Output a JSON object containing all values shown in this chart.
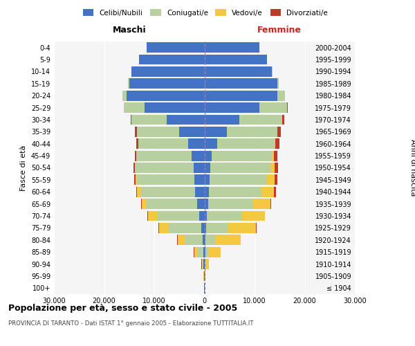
{
  "age_groups": [
    "100+",
    "95-99",
    "90-94",
    "85-89",
    "80-84",
    "75-79",
    "70-74",
    "65-69",
    "60-64",
    "55-59",
    "50-54",
    "45-49",
    "40-44",
    "35-39",
    "30-34",
    "25-29",
    "20-24",
    "15-19",
    "10-14",
    "5-9",
    "0-4"
  ],
  "birth_years": [
    "≤ 1904",
    "1905-1909",
    "1910-1914",
    "1915-1919",
    "1920-1924",
    "1925-1929",
    "1930-1934",
    "1935-1939",
    "1940-1944",
    "1945-1949",
    "1950-1954",
    "1955-1959",
    "1960-1964",
    "1965-1969",
    "1970-1974",
    "1975-1979",
    "1980-1984",
    "1985-1989",
    "1990-1994",
    "1995-1999",
    "2000-2004"
  ],
  "male_celibi": [
    50,
    80,
    150,
    250,
    350,
    600,
    1000,
    1500,
    1800,
    2000,
    2200,
    2500,
    3200,
    5000,
    7500,
    12000,
    15500,
    15000,
    14500,
    13000,
    11500
  ],
  "male_coniugati": [
    20,
    50,
    250,
    1200,
    3500,
    6500,
    8500,
    10000,
    11000,
    11500,
    11500,
    11000,
    10000,
    8500,
    7000,
    4000,
    800,
    200,
    50,
    10,
    5
  ],
  "male_vedovi": [
    5,
    20,
    150,
    600,
    1500,
    2000,
    1800,
    1000,
    600,
    200,
    100,
    50,
    20,
    10,
    5,
    2,
    1,
    0,
    0,
    0,
    0
  ],
  "male_divorziati": [
    2,
    5,
    10,
    20,
    30,
    50,
    100,
    150,
    250,
    300,
    300,
    300,
    400,
    300,
    200,
    100,
    30,
    10,
    2,
    0,
    0
  ],
  "female_celibi": [
    30,
    50,
    100,
    150,
    200,
    300,
    500,
    700,
    900,
    1000,
    1200,
    1500,
    2500,
    4500,
    7000,
    11000,
    14500,
    14500,
    13500,
    12500,
    11000
  ],
  "female_coniugati": [
    10,
    30,
    150,
    600,
    2000,
    4500,
    7000,
    9000,
    10500,
    11500,
    12000,
    12000,
    11500,
    10000,
    8500,
    5500,
    1500,
    300,
    80,
    15,
    5
  ],
  "female_vedovi": [
    10,
    80,
    600,
    2500,
    5000,
    5500,
    4500,
    3500,
    2500,
    1500,
    800,
    400,
    200,
    100,
    50,
    20,
    5,
    2,
    0,
    0,
    0
  ],
  "female_divorziati": [
    2,
    5,
    15,
    30,
    50,
    80,
    120,
    150,
    400,
    600,
    700,
    700,
    700,
    600,
    400,
    150,
    50,
    15,
    3,
    0,
    0
  ],
  "color_celibi": "#4472c4",
  "color_coniugati": "#b8cfa0",
  "color_vedovi": "#f5c842",
  "color_divorziati": "#c0392b",
  "title": "Popolazione per età, sesso e stato civile - 2005",
  "subtitle": "PROVINCIA DI TARANTO - Dati ISTAT 1° gennaio 2005 - Elaborazione TUTTITALIA.IT",
  "ylabel_left": "Fasce di età",
  "ylabel_right": "Anni di nascita",
  "xlabel_left": "Maschi",
  "xlabel_right": "Femmine",
  "xlim": 30000,
  "bg_color": "#f5f5f5"
}
